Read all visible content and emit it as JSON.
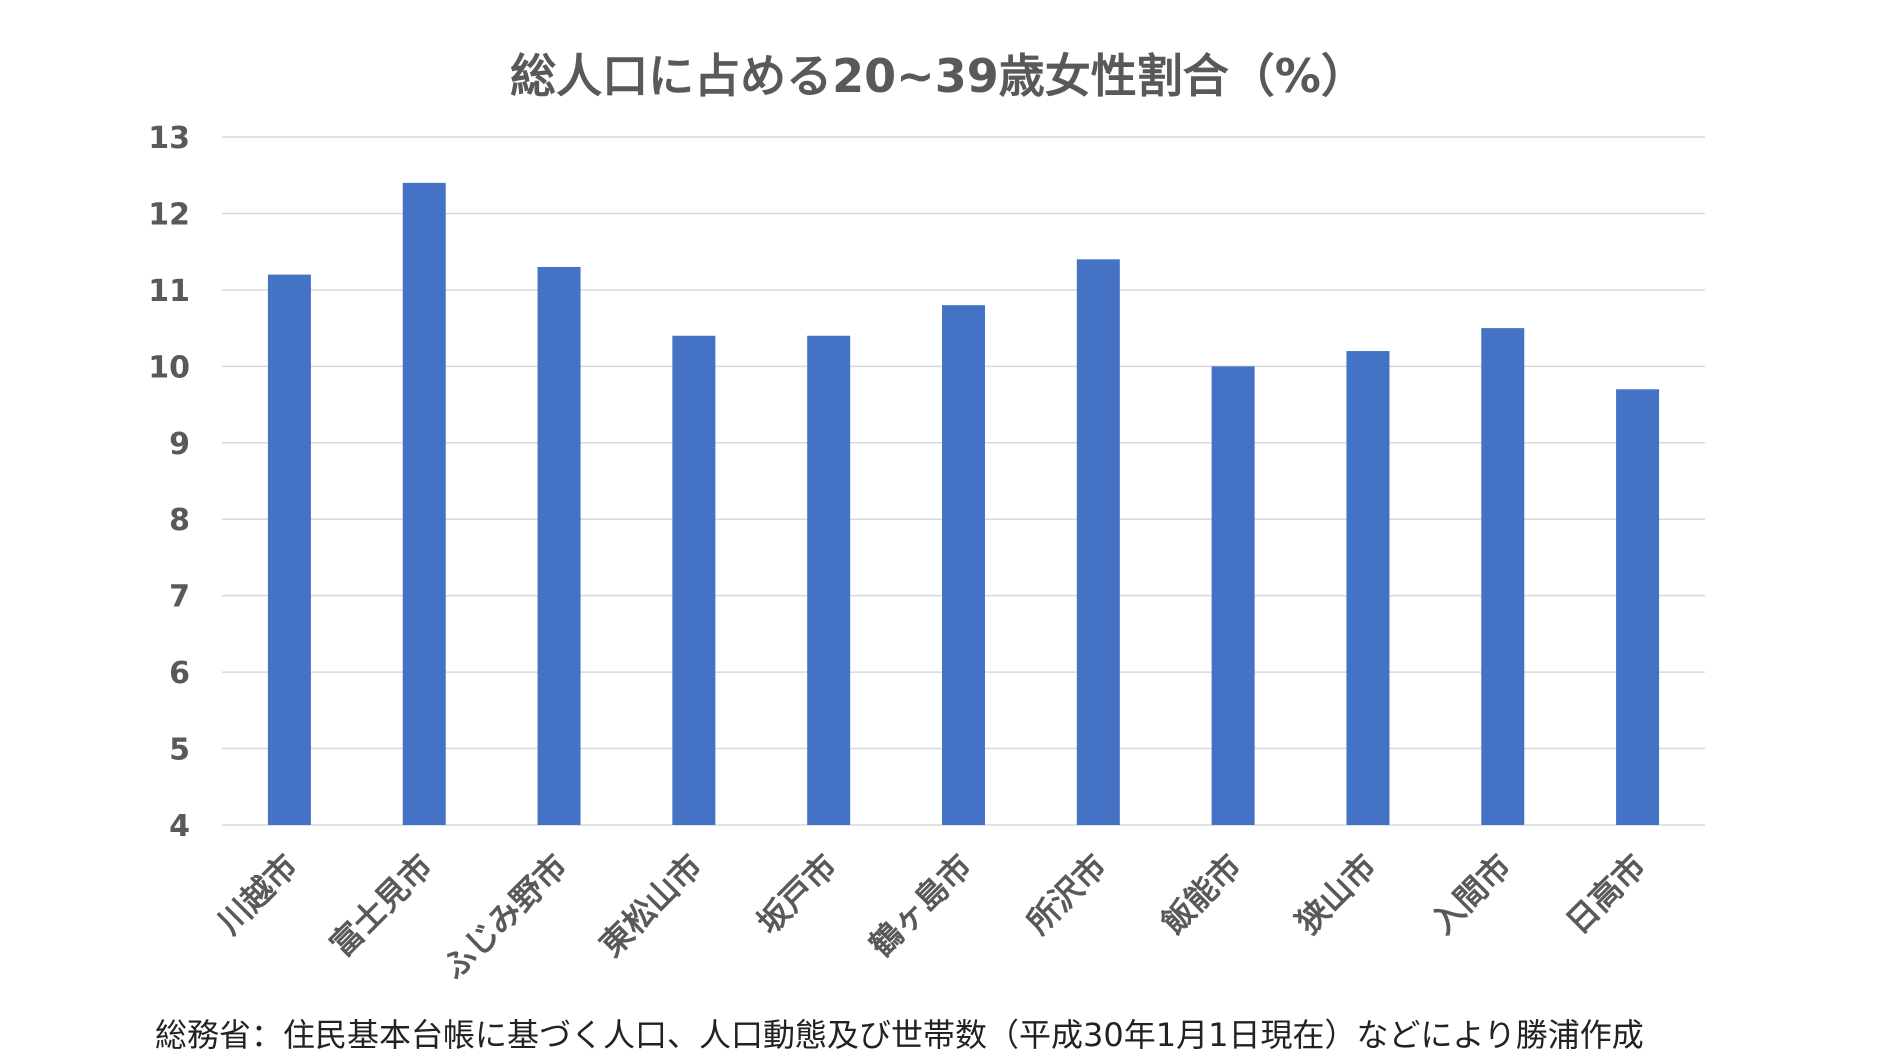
{
  "chart_data": {
    "type": "bar",
    "title": "総人口に占める20~39歳女性割合（%）",
    "categories": [
      "川越市",
      "富士見市",
      "ふじみ野市",
      "東松山市",
      "坂戸市",
      "鶴ヶ島市",
      "所沢市",
      "飯能市",
      "狭山市",
      "入間市",
      "日高市"
    ],
    "values": [
      11.2,
      12.4,
      11.3,
      10.4,
      10.4,
      10.8,
      11.4,
      10.0,
      10.2,
      10.5,
      9.7
    ],
    "ylim": [
      4,
      13
    ],
    "yticks": [
      "4",
      "5",
      "6",
      "7",
      "8",
      "9",
      "10",
      "11",
      "12",
      "13"
    ],
    "grid": true,
    "bar_color": "#4472C4"
  },
  "source_note": "総務省：住民基本台帳に基づく人口、人口動態及び世帯数（平成30年1月1日現在）などにより勝浦作成"
}
